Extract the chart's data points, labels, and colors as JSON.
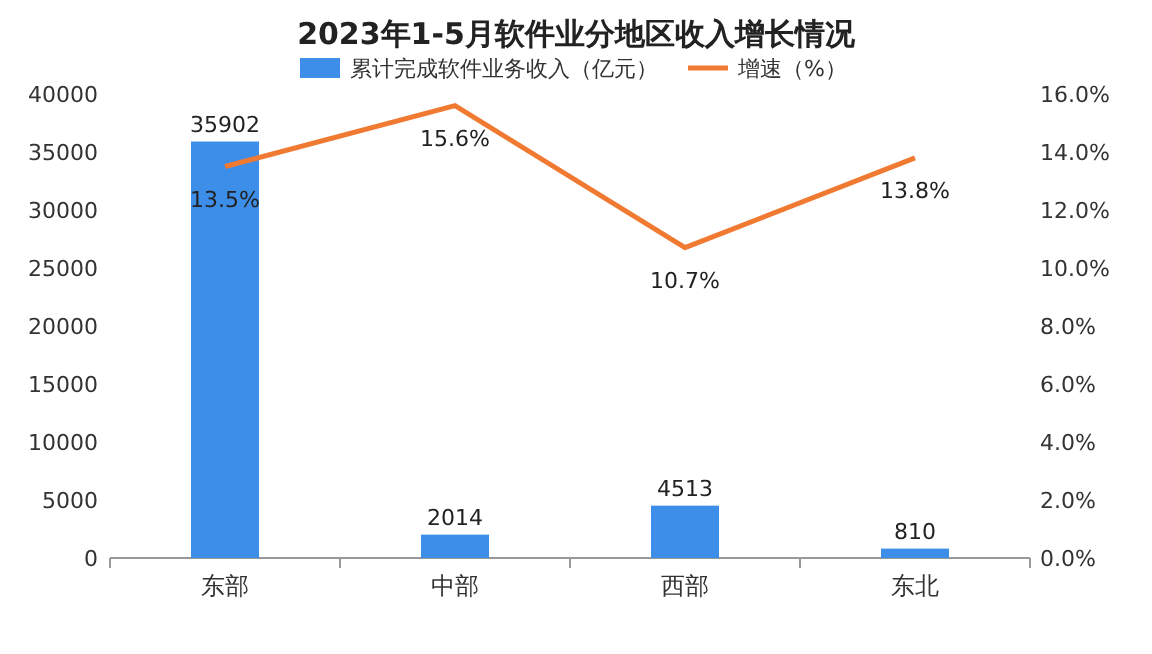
{
  "chart_data": {
    "type": "bar",
    "title": "2023年1-5月软件业分地区收入增长情况",
    "categories": [
      "东部",
      "中部",
      "西部",
      "东北"
    ],
    "series": [
      {
        "name": "累计完成软件业务收入（亿元）",
        "color": "#3d8ee8",
        "values": [
          35902,
          2014,
          4513,
          810
        ],
        "value_labels": [
          "35902",
          "2014",
          "4513",
          "810"
        ]
      },
      {
        "name": "增速（%）",
        "type": "line",
        "axis": "y2",
        "color": "#f07a32",
        "values": [
          13.5,
          15.6,
          10.7,
          13.8
        ],
        "value_labels": [
          "13.5%",
          "15.6%",
          "10.7%",
          "13.8%"
        ]
      }
    ],
    "ylim": [
      0,
      40000
    ],
    "yticks": [
      0,
      5000,
      10000,
      15000,
      20000,
      25000,
      30000,
      35000,
      40000
    ],
    "y2lim": [
      0,
      16
    ],
    "y2ticks": [
      {
        "value": 0,
        "label": "0.0%"
      },
      {
        "value": 2,
        "label": "2.0%"
      },
      {
        "value": 4,
        "label": "4.0%"
      },
      {
        "value": 6,
        "label": "6.0%"
      },
      {
        "value": 8,
        "label": "8.0%"
      },
      {
        "value": 10,
        "label": "10.0%"
      },
      {
        "value": 12,
        "label": "12.0%"
      },
      {
        "value": 14,
        "label": "14.0%"
      },
      {
        "value": 16,
        "label": "16.0%"
      }
    ],
    "legend": "top"
  }
}
